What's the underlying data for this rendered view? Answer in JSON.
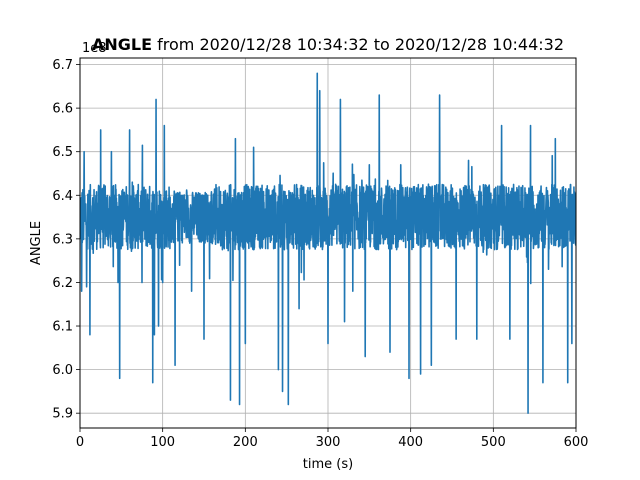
{
  "chart_data": {
    "type": "line",
    "title_bold": "ANGLE",
    "title_rest": " from 2020/12/28 10:34:32 to 2020/12/28 10:44:32",
    "xlabel": "time (s)",
    "ylabel": "ANGLE",
    "offset_label": "1e8",
    "xlim": [
      0,
      600
    ],
    "ylim": [
      5.866,
      6.715
    ],
    "xticks": [
      0,
      100,
      200,
      300,
      400,
      500,
      600
    ],
    "yticks": [
      5.9,
      6.0,
      6.1,
      6.2,
      6.3,
      6.4,
      6.5,
      6.6,
      6.7
    ],
    "x_tick_labels": [
      "0",
      "100",
      "200",
      "300",
      "400",
      "500",
      "600"
    ],
    "y_tick_labels": [
      "5.9",
      "6.0",
      "6.1",
      "6.2",
      "6.3",
      "6.4",
      "6.5",
      "6.6",
      "6.7"
    ],
    "grid": true,
    "line_color": "#1f77b4",
    "series": [
      {
        "values_note": "",
        "baseline_mean": 6.35,
        "spikes_x": [
          2,
          5,
          8,
          12,
          25,
          38,
          46,
          48,
          60,
          75,
          88,
          90,
          92,
          95,
          100,
          102,
          115,
          135,
          150,
          182,
          188,
          193,
          200,
          210,
          240,
          245,
          252,
          265,
          287,
          290,
          300,
          315,
          320,
          330,
          345,
          350,
          362,
          375,
          388,
          398,
          412,
          425,
          435,
          455,
          470,
          480,
          510,
          520,
          542,
          545,
          560,
          575,
          590,
          595
        ],
        "spikes_y": [
          6.18,
          6.5,
          6.19,
          6.08,
          6.55,
          6.5,
          6.2,
          5.98,
          6.55,
          6.2,
          5.97,
          6.08,
          6.62,
          6.1,
          6.2,
          6.56,
          6.01,
          6.18,
          6.07,
          5.93,
          6.53,
          5.92,
          6.06,
          6.51,
          6.0,
          5.95,
          5.92,
          6.14,
          6.68,
          6.64,
          6.06,
          6.62,
          6.11,
          6.18,
          6.03,
          6.47,
          6.63,
          6.04,
          6.47,
          5.98,
          5.99,
          6.01,
          6.63,
          6.07,
          6.48,
          6.07,
          6.56,
          6.07,
          5.9,
          6.56,
          5.97,
          6.53,
          5.97,
          6.06
        ]
      }
    ]
  }
}
